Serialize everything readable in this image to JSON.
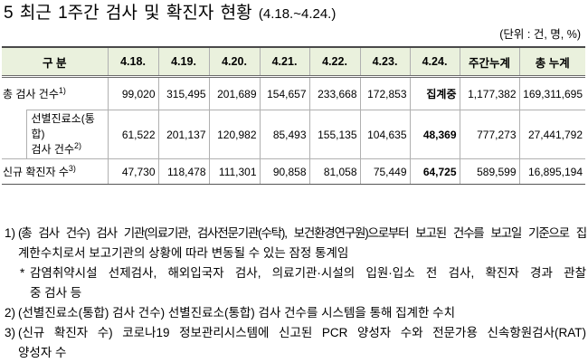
{
  "title": {
    "main": "5 최근 1주간 검사 및 확진자 현황",
    "range": "(4.18.~4.24.)"
  },
  "unit": "(단위 : 건, 명, %)",
  "table": {
    "header_fill": "#eaf1dd",
    "header": {
      "category": "구 분",
      "dates": [
        "4.18.",
        "4.19.",
        "4.20.",
        "4.21.",
        "4.22.",
        "4.23.",
        "4.24."
      ],
      "weekly_total": "주간누계",
      "cumulative_total": "총 누계"
    },
    "rows": [
      {
        "label": "총 검사 건수",
        "note": "1)",
        "values": [
          "99,020",
          "315,495",
          "201,689",
          "154,657",
          "233,668",
          "172,853",
          "집계중"
        ],
        "weekly_total": "1,177,382",
        "cumulative_total": "169,311,695"
      },
      {
        "label": "선별진료소(통합)",
        "label_line2": "검사 건수",
        "note": "2)",
        "values": [
          "61,522",
          "201,137",
          "120,982",
          "85,493",
          "155,135",
          "104,635",
          "48,369"
        ],
        "weekly_total": "777,273",
        "cumulative_total": "27,441,792"
      },
      {
        "label": "신규 확진자 수",
        "note": "3)",
        "values": [
          "47,730",
          "118,478",
          "111,301",
          "90,858",
          "81,058",
          "75,449",
          "64,725"
        ],
        "weekly_total": "589,599",
        "cumulative_total": "16,895,194"
      }
    ]
  },
  "footnotes": [
    {
      "marker": "1)",
      "lines": [
        "(총 검사 건수) 검사 기관(의료기관, 검사전문기관(수탁), 보건환경연구원)으로부터 보고된 건수를 보고일 기준으로 집",
        "계한수치로서 보고기관의 상황에 따라 변동될 수 있는 잠정 통계임"
      ]
    },
    {
      "marker": "*",
      "lines": [
        "감염취약시설 선제검사, 해외입국자 검사, 의료기관·시설의 입원·입소 전 검사, 확진자 경과 관찰",
        "중 검사 등"
      ]
    },
    {
      "marker": "2)",
      "lines": [
        "(선별진료소(통합) 검사 건수) 선별진료소(통합) 검사 건수를 시스템을 통해 집계한 수치"
      ]
    },
    {
      "marker": "3)",
      "lines": [
        "(신규 확진자 수) 코로나19 정보관리시스템에 신고된 PCR 양성자 수와 전문가용 신속항원검사(RAT)",
        "양성자 수"
      ]
    }
  ]
}
